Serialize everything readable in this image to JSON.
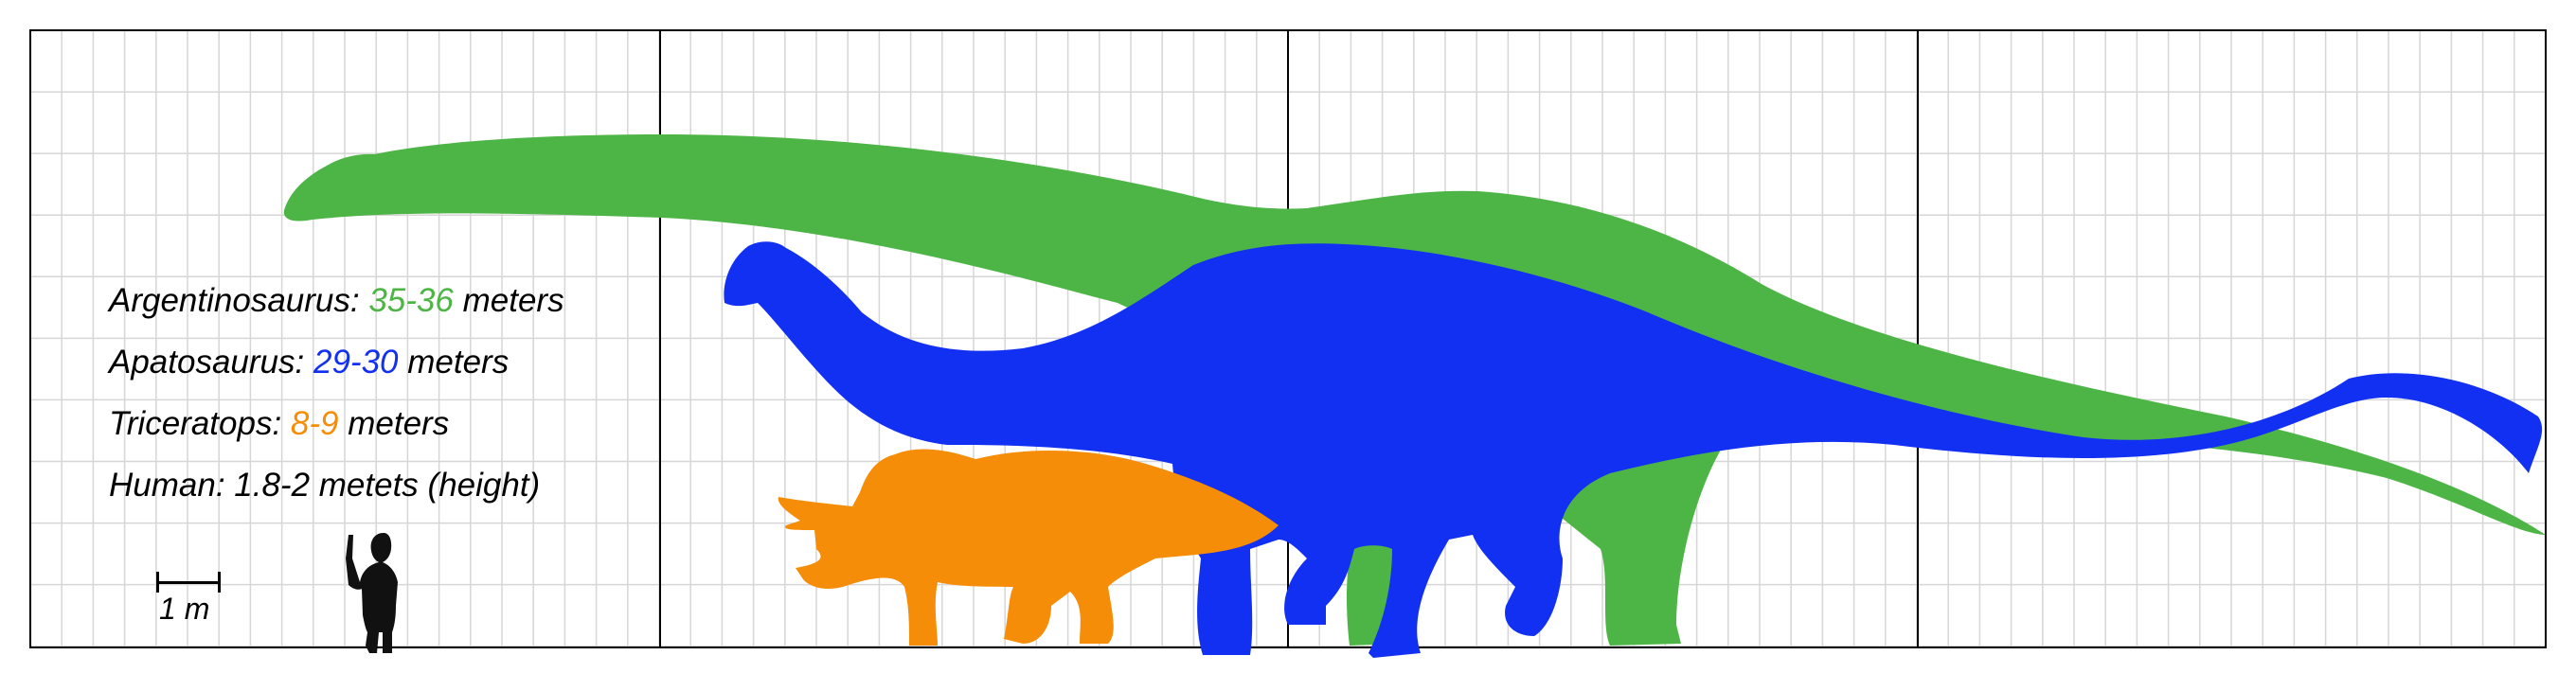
{
  "legend": {
    "rows": [
      {
        "name": "Argentinosaurus:",
        "size": "35-36",
        "unit": "meters",
        "color": "#4db546"
      },
      {
        "name": "Apatosaurus:",
        "size": "29-30",
        "unit": "meters",
        "color": "#1230f2"
      },
      {
        "name": "Triceratops:",
        "size": "8-9",
        "unit": "meters",
        "color": "#f68d08"
      },
      {
        "name": "Human: 1.8-2 metets (height)",
        "size": "",
        "unit": "",
        "color": "#000000"
      }
    ]
  },
  "scale": {
    "label": "1 m"
  },
  "colors": {
    "argentinosaurus": "#4db546",
    "apatosaurus": "#1230f2",
    "triceratops": "#f68d08",
    "human": "#111111",
    "grid_minor": "#d6d6d6",
    "grid_major": "#000000"
  }
}
